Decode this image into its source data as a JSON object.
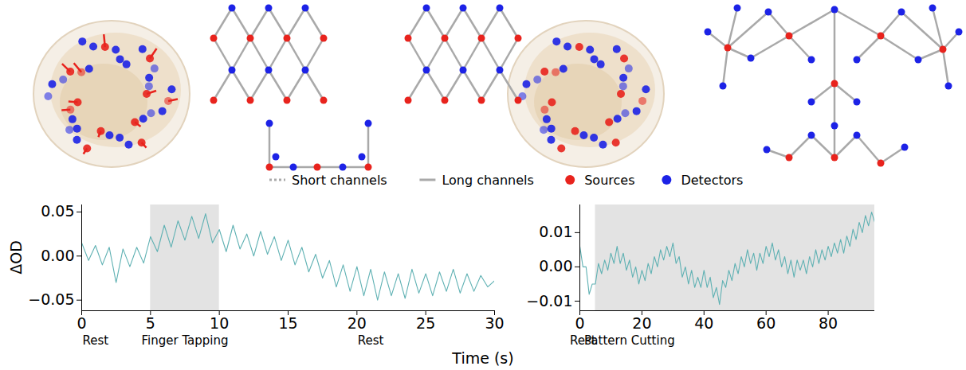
{
  "figure": {
    "legend": [
      {
        "label": "Short channels",
        "line_style": "dotted"
      },
      {
        "label": "Long channels",
        "line_style": "solid"
      },
      {
        "label": "Sources",
        "color": "#e8231d"
      },
      {
        "label": "Detectors",
        "color": "#1c22e6"
      }
    ],
    "xlabel": "Time (s)"
  },
  "chart_data": [
    {
      "type": "line",
      "ylabel": "ΔOD",
      "xlim": [
        0,
        30
      ],
      "xticks": [
        0,
        5,
        10,
        15,
        20,
        25,
        30
      ],
      "ylim": [
        -0.062,
        0.058
      ],
      "yticks": [
        {
          "value": -0.05,
          "label": "−0.05"
        },
        {
          "value": 0,
          "label": "0.00"
        },
        0.05
      ],
      "color": "#5fb1b3",
      "shaded": [
        {
          "start": 5,
          "end": 10
        }
      ],
      "annotations": [
        {
          "x": 1,
          "text": "Rest"
        },
        {
          "x": 7.5,
          "text": "Finger Tapping"
        },
        {
          "x": 21,
          "text": "Rest"
        }
      ],
      "x": [
        0,
        0.5,
        1,
        1.5,
        2,
        2.5,
        3,
        3.5,
        4,
        4.5,
        5,
        5.5,
        6,
        6.5,
        7,
        7.5,
        8,
        8.5,
        9,
        9.5,
        10,
        10.5,
        11,
        11.5,
        12,
        12.5,
        13,
        13.5,
        14,
        14.5,
        15,
        15.5,
        16,
        16.5,
        17,
        17.5,
        18,
        18.5,
        19,
        19.5,
        20,
        20.5,
        21,
        21.5,
        22,
        22.5,
        23,
        23.5,
        24,
        24.5,
        25,
        25.5,
        26,
        26.5,
        27,
        27.5,
        28,
        28.5,
        29,
        29.5,
        30
      ],
      "values": [
        0.015,
        -0.005,
        0.012,
        -0.01,
        0.01,
        -0.03,
        0.008,
        -0.012,
        0.01,
        -0.008,
        0.022,
        0.005,
        0.035,
        0.01,
        0.04,
        0.018,
        0.045,
        0.02,
        0.048,
        0.015,
        0.03,
        0.005,
        0.035,
        0.008,
        0.025,
        0.0,
        0.028,
        0.002,
        0.022,
        -0.005,
        0.018,
        -0.01,
        0.01,
        -0.018,
        0.002,
        -0.025,
        -0.005,
        -0.035,
        -0.01,
        -0.04,
        -0.012,
        -0.045,
        -0.015,
        -0.05,
        -0.018,
        -0.045,
        -0.02,
        -0.048,
        -0.015,
        -0.042,
        -0.02,
        -0.045,
        -0.018,
        -0.04,
        -0.015,
        -0.042,
        -0.02,
        -0.04,
        -0.022,
        -0.035,
        -0.028
      ]
    },
    {
      "type": "line",
      "xlim": [
        0,
        95
      ],
      "xticks": [
        0,
        20,
        40,
        60,
        80
      ],
      "ylim": [
        -0.0128,
        0.0181
      ],
      "yticks": [
        {
          "value": -0.01,
          "label": "−0.01"
        },
        {
          "value": 0,
          "label": "0.00"
        },
        0.01
      ],
      "color": "#5fb1b3",
      "shaded": [
        {
          "start": 5,
          "end": 95
        }
      ],
      "annotations": [
        {
          "x": 1,
          "text": "Rest"
        },
        {
          "x": 16,
          "text": "Pattern Cutting"
        }
      ],
      "x": [
        0,
        1,
        2,
        3,
        4,
        5,
        6,
        7,
        8,
        9,
        10,
        11,
        12,
        13,
        14,
        15,
        16,
        17,
        18,
        19,
        20,
        21,
        22,
        23,
        24,
        25,
        26,
        27,
        28,
        29,
        30,
        31,
        32,
        33,
        34,
        35,
        36,
        37,
        38,
        39,
        40,
        41,
        42,
        43,
        44,
        45,
        46,
        47,
        48,
        49,
        50,
        51,
        52,
        53,
        54,
        55,
        56,
        57,
        58,
        59,
        60,
        61,
        62,
        63,
        64,
        65,
        66,
        67,
        68,
        69,
        70,
        71,
        72,
        73,
        74,
        75,
        76,
        77,
        78,
        79,
        80,
        81,
        82,
        83,
        84,
        85,
        86,
        87,
        88,
        89,
        90,
        91,
        92,
        93,
        94,
        95
      ],
      "values": [
        0.006,
        0.0,
        0.0,
        -0.008,
        -0.005,
        -0.005,
        0.001,
        -0.002,
        0.002,
        -0.001,
        0.004,
        0.001,
        0.006,
        0.001,
        0.004,
        -0.001,
        0.002,
        -0.003,
        0.0,
        -0.005,
        -0.001,
        -0.004,
        0.001,
        -0.002,
        0.003,
        0.0,
        0.005,
        0.002,
        0.006,
        0.003,
        0.007,
        0.001,
        0.003,
        -0.003,
        0.0,
        -0.005,
        -0.001,
        -0.006,
        -0.003,
        -0.006,
        -0.001,
        -0.006,
        -0.003,
        -0.009,
        -0.006,
        -0.011,
        -0.004,
        -0.006,
        -0.001,
        -0.004,
        0.001,
        -0.002,
        0.003,
        0.0,
        0.005,
        0.001,
        0.004,
        -0.001,
        0.004,
        0.001,
        0.006,
        0.003,
        0.007,
        0.002,
        0.005,
        0.0,
        0.003,
        -0.002,
        0.002,
        -0.003,
        0.002,
        -0.001,
        0.002,
        -0.002,
        0.003,
        0.0,
        0.005,
        0.001,
        0.005,
        0.002,
        0.006,
        0.003,
        0.007,
        0.004,
        0.008,
        0.004,
        0.009,
        0.006,
        0.011,
        0.008,
        0.013,
        0.01,
        0.015,
        0.012,
        0.016,
        0.013
      ]
    }
  ]
}
